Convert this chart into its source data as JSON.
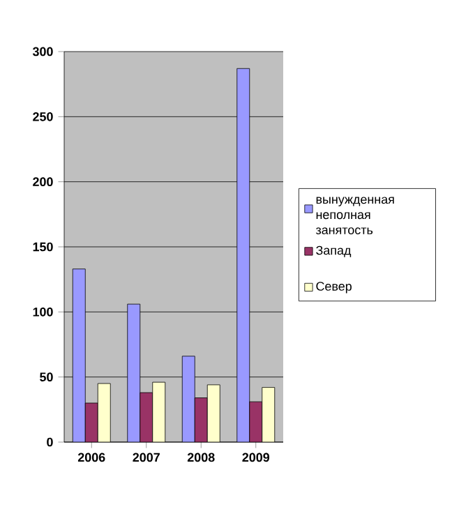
{
  "chart_data": {
    "type": "bar",
    "categories": [
      "2006",
      "2007",
      "2008",
      "2009"
    ],
    "series": [
      {
        "name": "вынужденная неполная занятость",
        "color": "#9999ff",
        "values": [
          133,
          106,
          66,
          287
        ]
      },
      {
        "name": "Запад",
        "color": "#993366",
        "values": [
          30,
          38,
          34,
          31
        ]
      },
      {
        "name": "Север",
        "color": "#ffffcc",
        "values": [
          45,
          46,
          44,
          42
        ]
      }
    ],
    "ylim": [
      0,
      300
    ],
    "yticks": [
      0,
      50,
      100,
      150,
      200,
      250,
      300
    ],
    "grid": "y",
    "legend": "right"
  }
}
